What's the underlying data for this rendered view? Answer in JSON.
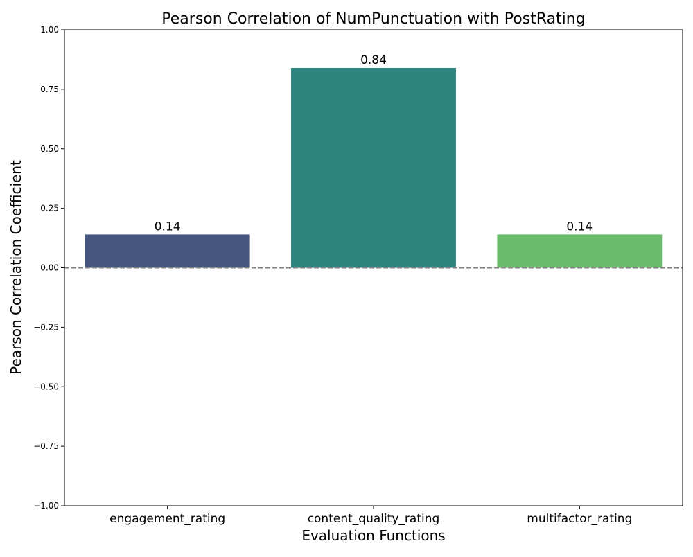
{
  "chart_data": {
    "type": "bar",
    "title": "Pearson Correlation of NumPunctuation with PostRating",
    "xlabel": "Evaluation Functions",
    "ylabel": "Pearson Correlation Coefficient",
    "categories": [
      "engagement_rating",
      "content_quality_rating",
      "multifactor_rating"
    ],
    "values": [
      0.14,
      0.84,
      0.14
    ],
    "value_labels": [
      "0.14",
      "0.84",
      "0.14"
    ],
    "colors": [
      "#46577f",
      "#2e847f",
      "#6abc6c"
    ],
    "ylim": [
      -1.0,
      1.0
    ],
    "yticks": [
      -1.0,
      -0.75,
      -0.5,
      -0.25,
      0.0,
      0.25,
      0.5,
      0.75,
      1.0
    ],
    "ytick_labels": [
      "−1.00",
      "−0.75",
      "−0.50",
      "−0.25",
      "0.00",
      "0.25",
      "0.50",
      "0.75",
      "1.00"
    ],
    "reference_line": {
      "y": 0.0,
      "style": "dashed",
      "color": "#808080"
    },
    "grid": false,
    "legend": "none"
  }
}
